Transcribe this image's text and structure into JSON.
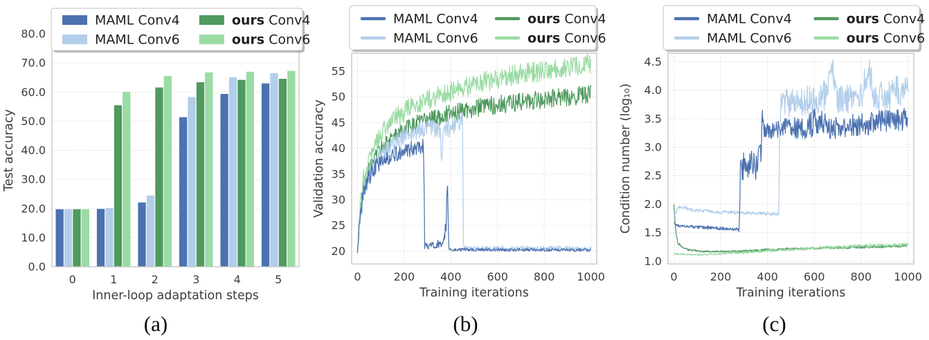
{
  "page": {
    "captions": [
      "(a)",
      "(b)",
      "(c)"
    ]
  },
  "colors": {
    "maml_conv4": "#4C72B0",
    "maml_conv6": "#B2CEEB",
    "ours_conv4": "#4F9A5E",
    "ours_conv6": "#9BDBA4",
    "grid": "#c9c9c9",
    "spine": "#c3c3c3",
    "tick_text": "#3d3d3d",
    "legend_text": "#1f1f1f"
  },
  "legend_entries": [
    {
      "prefix": "MAML",
      "rest": " Conv4",
      "bold_prefix": false,
      "color_key": "maml_conv4"
    },
    {
      "prefix": "MAML",
      "rest": " Conv6",
      "bold_prefix": false,
      "color_key": "maml_conv6"
    },
    {
      "prefix": "ours",
      "rest": " Conv4",
      "bold_prefix": true,
      "color_key": "ours_conv4"
    },
    {
      "prefix": "ours",
      "rest": " Conv6",
      "bold_prefix": true,
      "color_key": "ours_conv6"
    }
  ],
  "chart_data": [
    {
      "type": "bar",
      "panel": "a",
      "xlabel": "Inner-loop adaptation steps",
      "ylabel": "Test accuracy",
      "categories": [
        "0",
        "1",
        "2",
        "3",
        "4",
        "5"
      ],
      "ylim": [
        0,
        80
      ],
      "yticks": [
        0,
        10,
        20,
        30,
        40,
        50,
        60,
        70,
        80
      ],
      "ytick_labels": [
        "0.0",
        "10.0",
        "20.0",
        "30.0",
        "40.0",
        "50.0",
        "60.0",
        "70.0",
        "80.0"
      ],
      "grid": "horizontal",
      "legend_swatch": "rect",
      "series": [
        {
          "name": "MAML Conv4",
          "color_key": "maml_conv4",
          "values": [
            19.9,
            20.0,
            22.2,
            51.5,
            59.5,
            63.1
          ]
        },
        {
          "name": "MAML Conv6",
          "color_key": "maml_conv6",
          "values": [
            19.9,
            20.3,
            24.6,
            58.4,
            65.2,
            66.6
          ]
        },
        {
          "name": "ours Conv4",
          "color_key": "ours_conv4",
          "values": [
            19.9,
            55.6,
            61.7,
            63.5,
            64.3,
            64.7
          ]
        },
        {
          "name": "ours Conv6",
          "color_key": "ours_conv6",
          "values": [
            19.9,
            60.2,
            65.6,
            66.9,
            67.1,
            67.4
          ]
        }
      ]
    },
    {
      "type": "line",
      "panel": "b",
      "xlabel": "Training iterations",
      "ylabel": "Validation accuracy",
      "xlim": [
        -25,
        1025
      ],
      "ylim": [
        17.5,
        58.5
      ],
      "xticks": [
        0,
        200,
        400,
        600,
        800,
        1000
      ],
      "xtick_labels": [
        "0",
        "200",
        "400",
        "600",
        "800",
        "1000"
      ],
      "yticks": [
        20,
        25,
        30,
        35,
        40,
        45,
        50,
        55
      ],
      "ytick_labels": [
        "20",
        "25",
        "30",
        "35",
        "40",
        "45",
        "50",
        "55"
      ],
      "grid": "both",
      "legend_swatch": "line",
      "x_step": 2,
      "series": [
        {
          "name": "ours Conv4",
          "color_key": "ours_conv4",
          "keyframes": [
            [
              0,
              20,
              0.5
            ],
            [
              10,
              27,
              2
            ],
            [
              25,
              32,
              2
            ],
            [
              50,
              35.5,
              1.8
            ],
            [
              100,
              40,
              1.8
            ],
            [
              150,
              42,
              1.8
            ],
            [
              200,
              43.5,
              1.8
            ],
            [
              250,
              44.8,
              1.8
            ],
            [
              300,
              45.5,
              1.8
            ],
            [
              400,
              46.8,
              1.8
            ],
            [
              500,
              47.8,
              1.8
            ],
            [
              600,
              48.5,
              1.8
            ],
            [
              700,
              49,
              1.8
            ],
            [
              800,
              49.5,
              1.8
            ],
            [
              900,
              50,
              1.8
            ],
            [
              1000,
              50.5,
              1.8
            ]
          ]
        },
        {
          "name": "ours Conv6",
          "color_key": "ours_conv6",
          "keyframes": [
            [
              0,
              20,
              0.5
            ],
            [
              10,
              28,
              2
            ],
            [
              25,
              34,
              2
            ],
            [
              50,
              38,
              2
            ],
            [
              100,
              43,
              2
            ],
            [
              150,
              45.5,
              2
            ],
            [
              200,
              47,
              2
            ],
            [
              250,
              48.5,
              2
            ],
            [
              300,
              49.5,
              2
            ],
            [
              400,
              51,
              2
            ],
            [
              500,
              52.5,
              2
            ],
            [
              600,
              53.5,
              2
            ],
            [
              700,
              54.5,
              2
            ],
            [
              800,
              55,
              2
            ],
            [
              900,
              55.8,
              2
            ],
            [
              1000,
              56.5,
              2
            ]
          ]
        },
        {
          "name": "MAML Conv6",
          "color_key": "maml_conv6",
          "keyframes": [
            [
              0,
              20,
              0.5
            ],
            [
              10,
              26,
              2
            ],
            [
              30,
              32,
              2
            ],
            [
              60,
              36,
              2
            ],
            [
              100,
              38.5,
              2
            ],
            [
              150,
              41,
              1.8
            ],
            [
              200,
              42.5,
              1.8
            ],
            [
              300,
              44,
              1.8
            ],
            [
              355,
              43.8,
              1.8
            ],
            [
              361,
              37,
              2.5
            ],
            [
              366,
              43.5,
              1.8
            ],
            [
              420,
              44.5,
              1.8
            ],
            [
              445,
              45.5,
              1.8
            ],
            [
              450,
              47.5,
              0.8
            ],
            [
              454,
              21,
              0.5
            ],
            [
              470,
              20.5,
              0.5
            ],
            [
              1000,
              20.5,
              0.5
            ]
          ]
        },
        {
          "name": "MAML Conv4",
          "color_key": "maml_conv4",
          "keyframes": [
            [
              0,
              20,
              0.5
            ],
            [
              8,
              25,
              1.5
            ],
            [
              20,
              30,
              1.5
            ],
            [
              40,
              33.5,
              1.5
            ],
            [
              80,
              36.5,
              1.5
            ],
            [
              120,
              38,
              1.5
            ],
            [
              200,
              39.5,
              1.5
            ],
            [
              283,
              40.5,
              1.5
            ],
            [
              288,
              21.5,
              1
            ],
            [
              300,
              21,
              0.7
            ],
            [
              340,
              21.3,
              0.7
            ],
            [
              370,
              22,
              1
            ],
            [
              380,
              26,
              2.5
            ],
            [
              386,
              33,
              1
            ],
            [
              391,
              20.3,
              0.3
            ],
            [
              1000,
              20.2,
              0.3
            ]
          ]
        }
      ]
    },
    {
      "type": "line",
      "panel": "c",
      "xlabel": "Training iterations",
      "ylabel": "Condition number (log₁₀)",
      "xlim": [
        -25,
        1025
      ],
      "ylim": [
        0.95,
        4.65
      ],
      "xticks": [
        0,
        200,
        400,
        600,
        800,
        1000
      ],
      "xtick_labels": [
        "0",
        "200",
        "400",
        "600",
        "800",
        "1000"
      ],
      "yticks": [
        1.0,
        1.5,
        2.0,
        2.5,
        3.0,
        3.5,
        4.0,
        4.5
      ],
      "ytick_labels": [
        "1.0",
        "1.5",
        "2.0",
        "2.5",
        "3.0",
        "3.5",
        "4.0",
        "4.5"
      ],
      "grid": "both",
      "legend_swatch": "line",
      "x_step": 2,
      "series": [
        {
          "name": "ours Conv4",
          "color_key": "ours_conv4",
          "keyframes": [
            [
              0,
              2.0,
              0.005
            ],
            [
              6,
              1.6,
              0.04
            ],
            [
              15,
              1.35,
              0.03
            ],
            [
              30,
              1.25,
              0.02
            ],
            [
              60,
              1.2,
              0.015
            ],
            [
              120,
              1.17,
              0.015
            ],
            [
              250,
              1.17,
              0.015
            ],
            [
              400,
              1.2,
              0.02
            ],
            [
              550,
              1.22,
              0.02
            ],
            [
              700,
              1.24,
              0.025
            ],
            [
              850,
              1.25,
              0.025
            ],
            [
              1000,
              1.27,
              0.025
            ]
          ]
        },
        {
          "name": "ours Conv6",
          "color_key": "ours_conv6",
          "keyframes": [
            [
              0,
              1.13,
              0.015
            ],
            [
              100,
              1.11,
              0.012
            ],
            [
              200,
              1.13,
              0.015
            ],
            [
              300,
              1.15,
              0.015
            ],
            [
              400,
              1.18,
              0.02
            ],
            [
              500,
              1.2,
              0.02
            ],
            [
              600,
              1.23,
              0.025
            ],
            [
              700,
              1.25,
              0.025
            ],
            [
              800,
              1.27,
              0.025
            ],
            [
              900,
              1.28,
              0.025
            ],
            [
              1000,
              1.3,
              0.025
            ]
          ]
        },
        {
          "name": "MAML Conv6",
          "color_key": "maml_conv6",
          "keyframes": [
            [
              0,
              1.78,
              0.02
            ],
            [
              20,
              1.95,
              0.03
            ],
            [
              80,
              1.9,
              0.03
            ],
            [
              200,
              1.86,
              0.03
            ],
            [
              350,
              1.84,
              0.03
            ],
            [
              448,
              1.83,
              0.03
            ],
            [
              452,
              3.3,
              0.05
            ],
            [
              458,
              3.75,
              0.25
            ],
            [
              550,
              3.8,
              0.25
            ],
            [
              650,
              3.9,
              0.3
            ],
            [
              683,
              4.3,
              0.3
            ],
            [
              700,
              3.85,
              0.25
            ],
            [
              750,
              3.85,
              0.28
            ],
            [
              800,
              3.9,
              0.3
            ],
            [
              830,
              4.35,
              0.3
            ],
            [
              860,
              3.85,
              0.28
            ],
            [
              950,
              3.95,
              0.3
            ],
            [
              1000,
              4.0,
              0.3
            ]
          ]
        },
        {
          "name": "MAML Conv4",
          "color_key": "maml_conv4",
          "keyframes": [
            [
              0,
              1.66,
              0.02
            ],
            [
              30,
              1.61,
              0.025
            ],
            [
              150,
              1.59,
              0.03
            ],
            [
              270,
              1.56,
              0.03
            ],
            [
              279,
              1.53,
              0.02
            ],
            [
              284,
              2.6,
              0.25
            ],
            [
              310,
              2.75,
              0.3
            ],
            [
              345,
              2.65,
              0.25
            ],
            [
              372,
              2.85,
              0.3
            ],
            [
              378,
              3.55,
              0.12
            ],
            [
              383,
              3.3,
              0.15
            ],
            [
              420,
              3.3,
              0.15
            ],
            [
              500,
              3.35,
              0.18
            ],
            [
              560,
              3.3,
              0.2
            ],
            [
              620,
              3.5,
              0.28
            ],
            [
              660,
              3.35,
              0.2
            ],
            [
              700,
              3.35,
              0.2
            ],
            [
              800,
              3.4,
              0.2
            ],
            [
              900,
              3.45,
              0.2
            ],
            [
              1000,
              3.5,
              0.2
            ]
          ]
        }
      ]
    }
  ]
}
